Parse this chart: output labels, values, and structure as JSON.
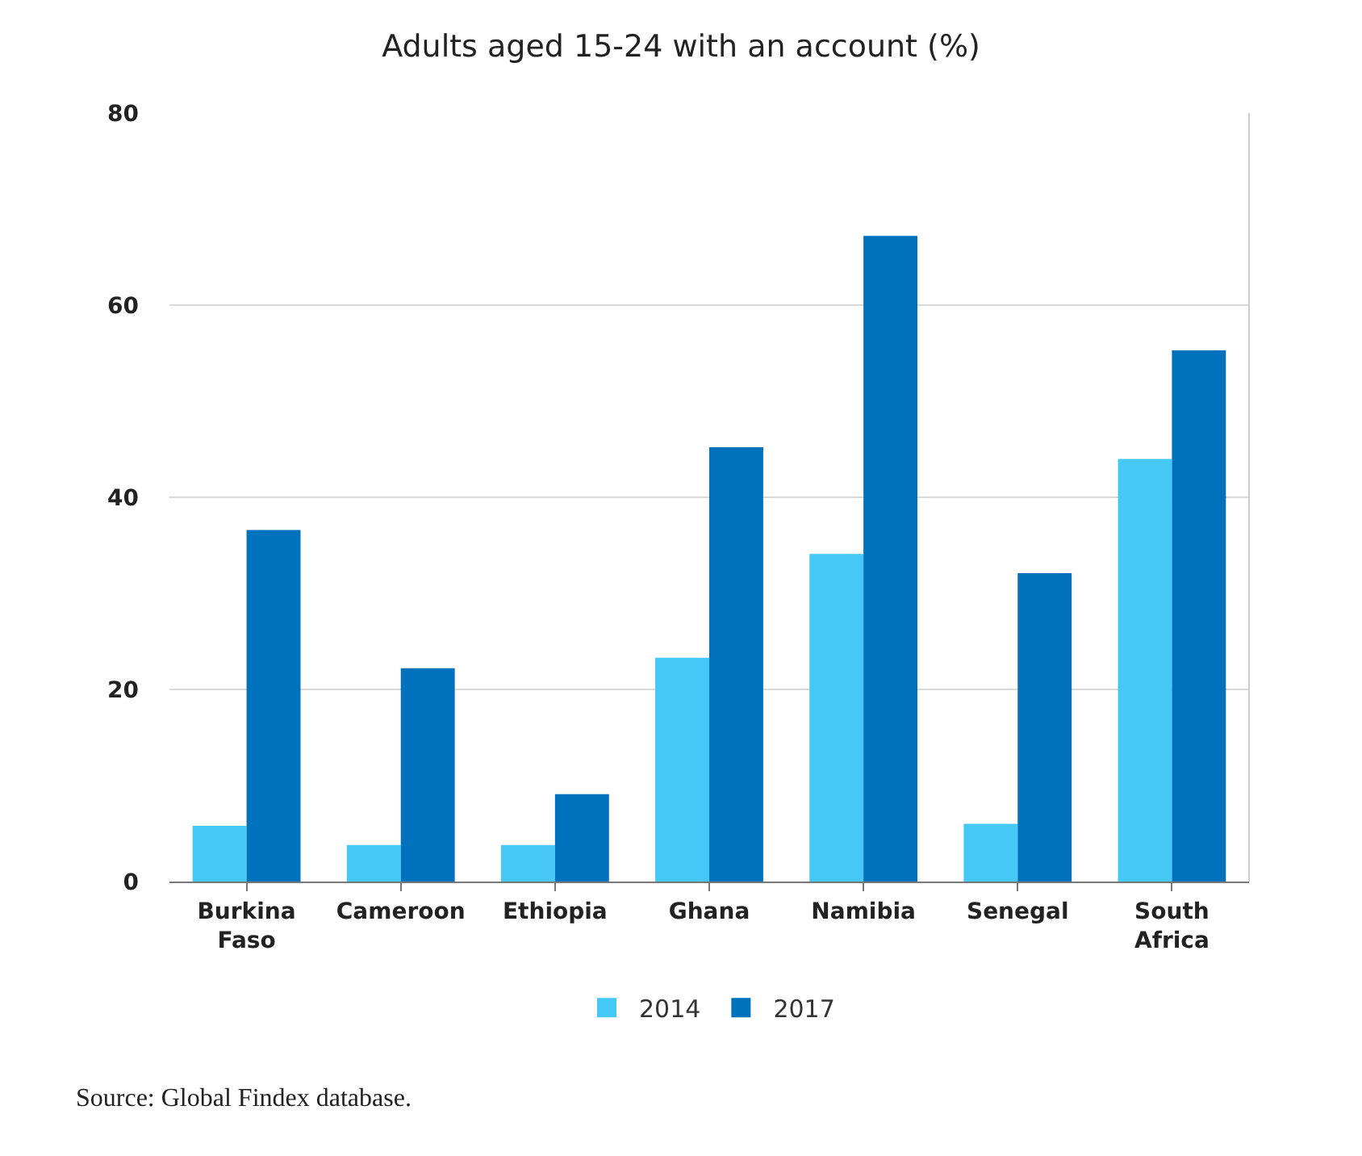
{
  "chart_data": {
    "type": "bar",
    "title": "Adults aged 15-24 with an account (%)",
    "categories": [
      "Burkina Faso",
      "Cameroon",
      "Ethiopia",
      "Ghana",
      "Namibia",
      "Senegal",
      "South Africa"
    ],
    "series": [
      {
        "name": "2014",
        "color": "#45c8f5",
        "values": [
          5.8,
          3.8,
          3.8,
          23.3,
          34.1,
          6.0,
          44.0
        ]
      },
      {
        "name": "2017",
        "color": "#0071bc",
        "values": [
          36.6,
          22.2,
          9.1,
          45.2,
          67.2,
          32.1,
          55.3
        ]
      }
    ],
    "ylim": [
      0,
      80
    ],
    "yticks": [
      0,
      20,
      40,
      60,
      80
    ],
    "grid": "y",
    "legend": "bottom",
    "annotations": [
      "Source: Global Findex database."
    ]
  }
}
